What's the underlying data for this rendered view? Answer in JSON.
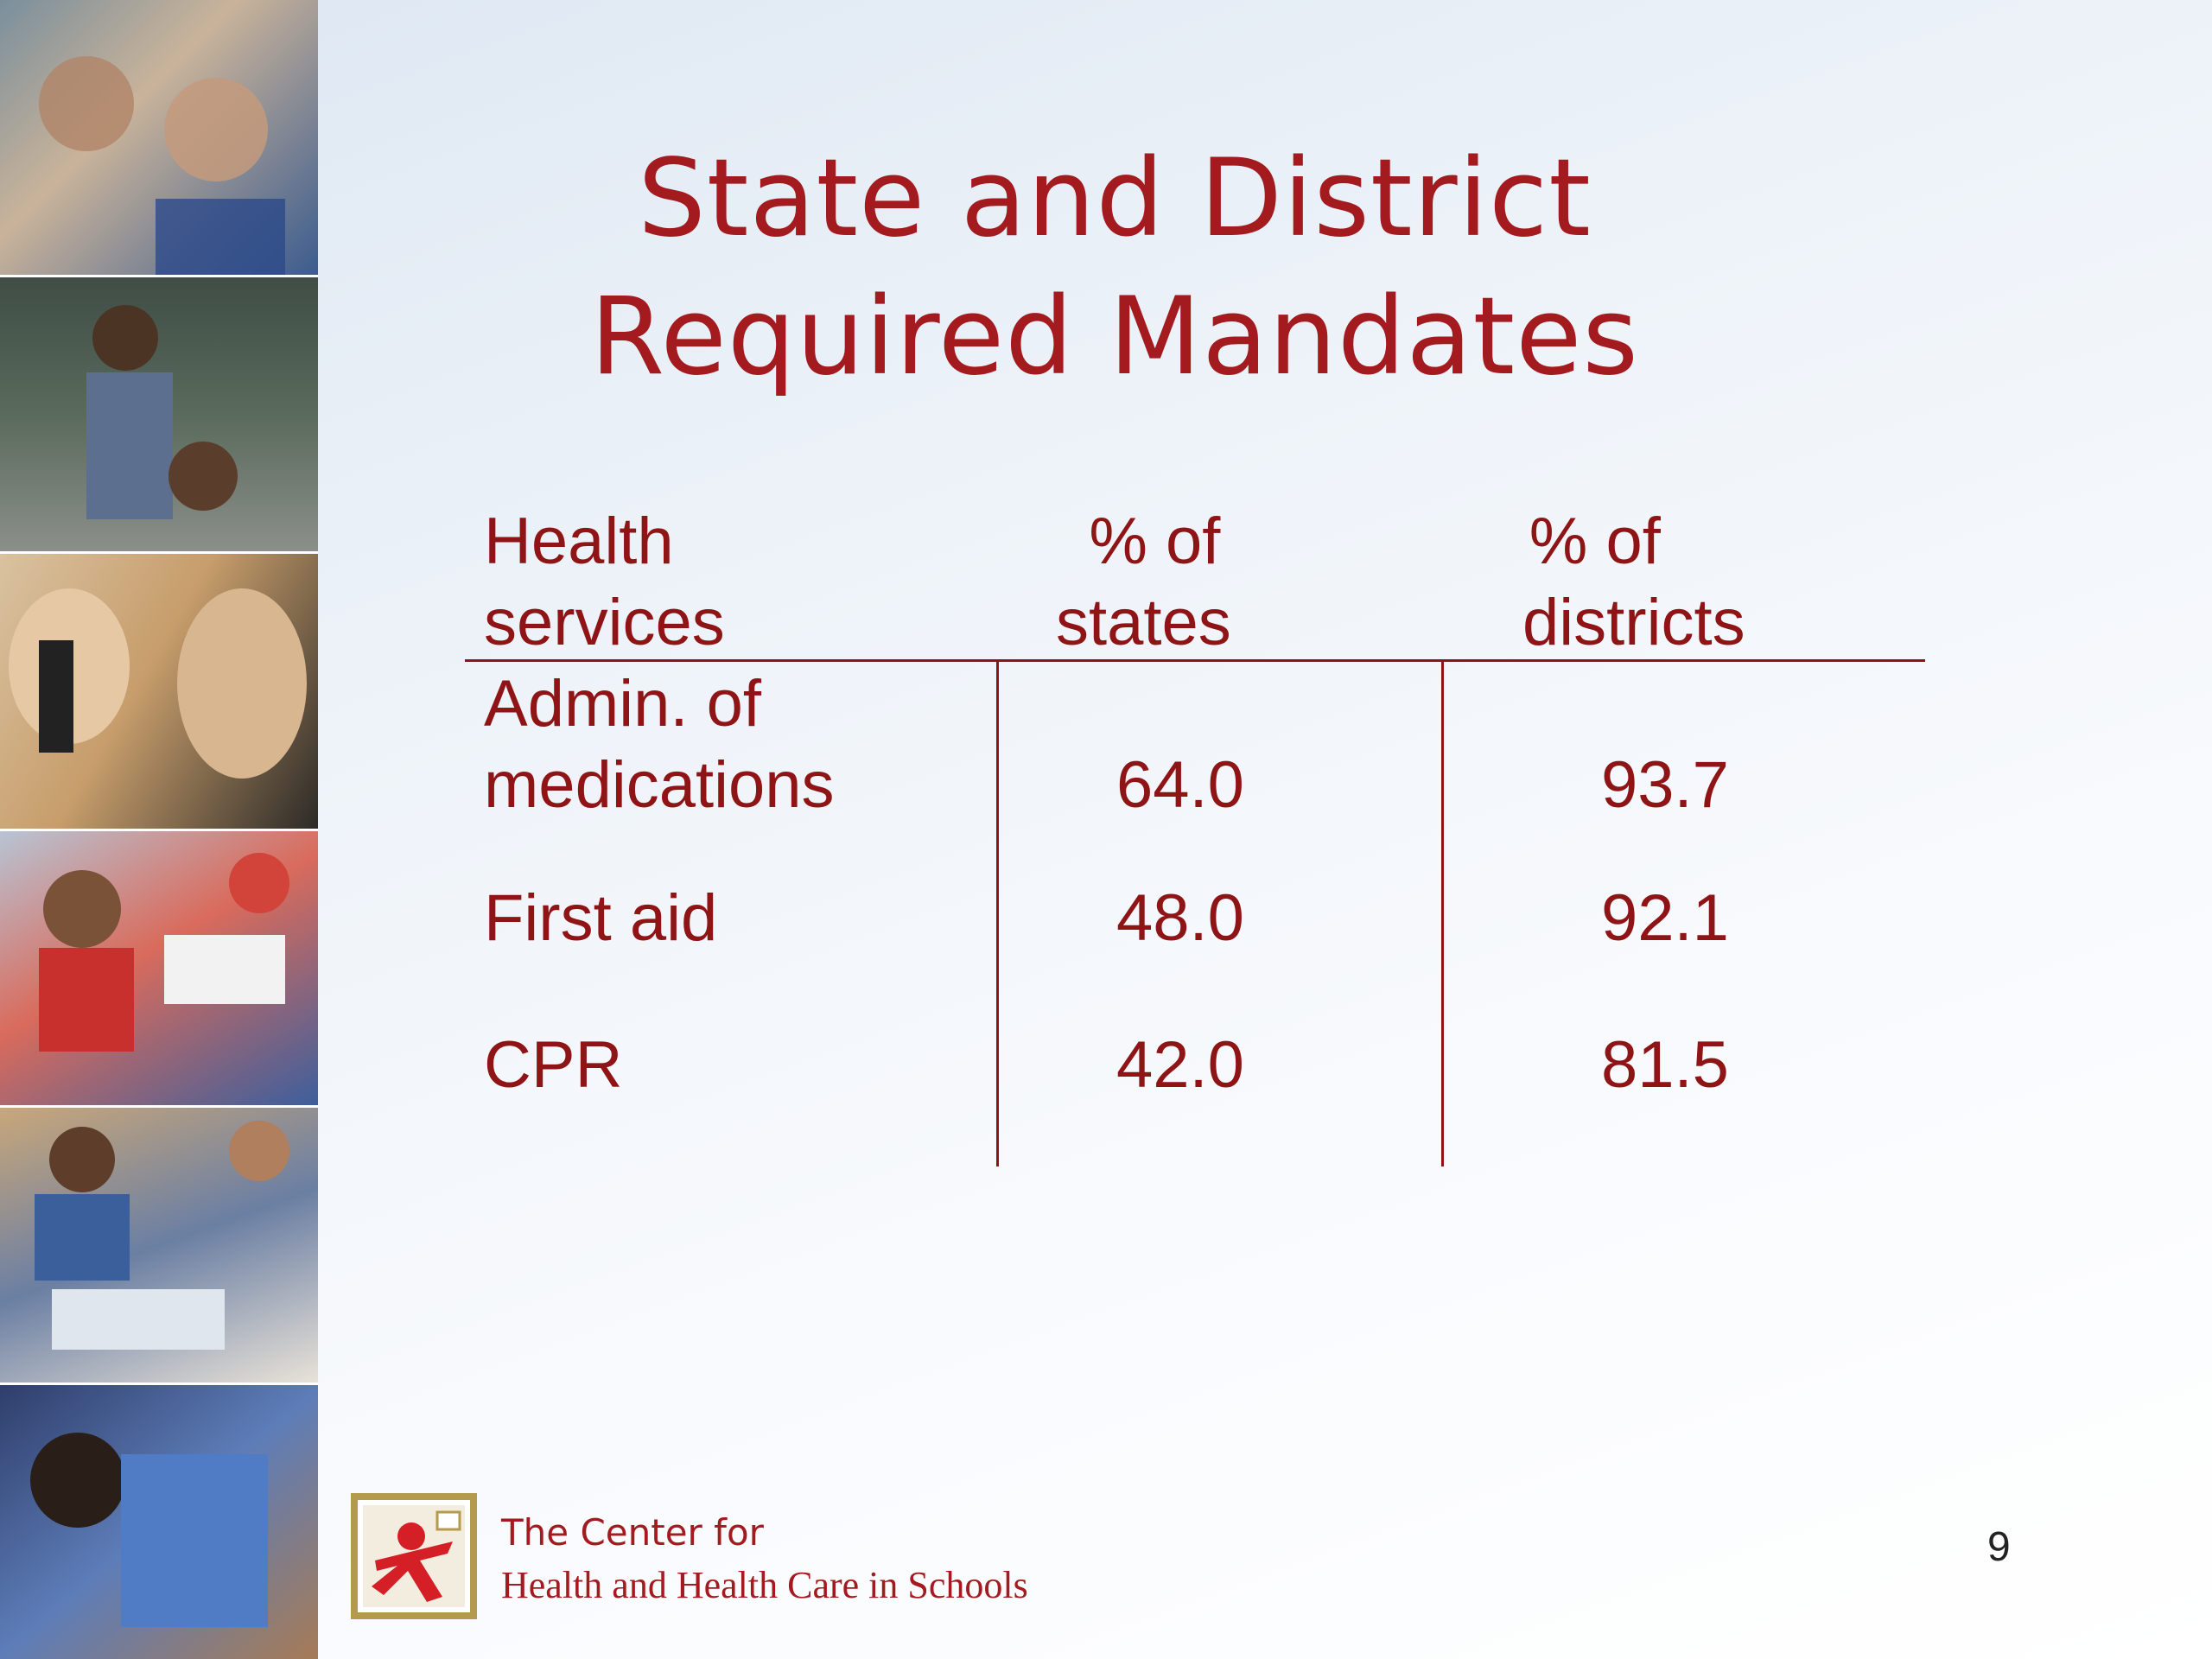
{
  "slide": {
    "title": "State and District Required Mandates",
    "page_number": "9",
    "colors": {
      "title": "#a31b1f",
      "table_text": "#8f1416",
      "logo_border": "#b39a4c"
    }
  },
  "table": {
    "headers": [
      {
        "line1": "Health",
        "line2": "services"
      },
      {
        "line1": "% of",
        "line2": "states"
      },
      {
        "line1": "% of",
        "line2": "districts"
      }
    ],
    "rows": [
      {
        "service_line1": "Admin. of",
        "service_line2": "medications",
        "states": "64.0",
        "districts": "93.7"
      },
      {
        "service": "First aid",
        "states": "48.0",
        "districts": "92.1"
      },
      {
        "service": "CPR",
        "states": "42.0",
        "districts": "81.5"
      }
    ]
  },
  "organization": {
    "line1": "The Center for",
    "line2": "Health and Health Care in Schools",
    "logo_icon": "running-figure-icon"
  },
  "photo_strip": [
    "photo-adult-child-ear-exam",
    "photo-boy-at-chalkboard",
    "photo-girls-microscope",
    "photo-children-outdoors",
    "photo-child-at-nurse-office",
    "photo-child-bending"
  ]
}
